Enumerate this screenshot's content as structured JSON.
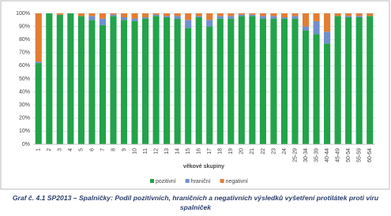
{
  "chart_data": {
    "type": "stacked_bar",
    "categories": [
      "1",
      "2",
      "3",
      "4",
      "5",
      "6",
      "7",
      "8",
      "9",
      "10",
      "11",
      "12",
      "13",
      "14",
      "15",
      "16",
      "17",
      "18",
      "19",
      "20",
      "21",
      "22",
      "23",
      "24",
      "25-29",
      "30-34",
      "35-39",
      "40-44",
      "45-49",
      "50-54",
      "55-59",
      "60-64"
    ],
    "series": [
      {
        "name": "pozitivní",
        "color": "#22a34a",
        "values": [
          62,
          100,
          99,
          100,
          98,
          95,
          91,
          98,
          95,
          94,
          96,
          98,
          97,
          96,
          89,
          97,
          90,
          96,
          96,
          98,
          98,
          96,
          96,
          96,
          96,
          87,
          84,
          77,
          98,
          97,
          97,
          98
        ]
      },
      {
        "name": "hraniční",
        "color": "#6f8fcf",
        "values": [
          1,
          0,
          0,
          0,
          0,
          3,
          5,
          1,
          2,
          2,
          1,
          1,
          1,
          2,
          6,
          1,
          5,
          2,
          2,
          1,
          1,
          2,
          2,
          1,
          2,
          3,
          10,
          9,
          0,
          1,
          1,
          0
        ]
      },
      {
        "name": "negativní",
        "color": "#e47d32",
        "values": [
          37,
          0,
          1,
          0,
          2,
          2,
          4,
          1,
          3,
          4,
          3,
          1,
          2,
          2,
          5,
          2,
          5,
          2,
          2,
          1,
          1,
          2,
          2,
          3,
          2,
          10,
          6,
          14,
          2,
          2,
          2,
          2
        ]
      }
    ],
    "ylim": [
      0,
      100
    ],
    "yticks": [
      {
        "value": 0,
        "label": "0%"
      },
      {
        "value": 10,
        "label": "10%"
      },
      {
        "value": 20,
        "label": "20%"
      },
      {
        "value": 30,
        "label": "30%"
      },
      {
        "value": 40,
        "label": "40%"
      },
      {
        "value": 50,
        "label": "50%"
      },
      {
        "value": 60,
        "label": "60%"
      },
      {
        "value": 70,
        "label": "70%"
      },
      {
        "value": 80,
        "label": "80%"
      },
      {
        "value": 90,
        "label": "90%"
      },
      {
        "value": 100,
        "label": "100%"
      }
    ],
    "xlabel": "věkové skupiny",
    "grid": true,
    "legend": "bottom",
    "caption": "Graf č. 4.1 SP2013 – Spalničky: Podíl pozitivních, hraničních a negativních výsledků vyšetření protilátek proti viru spalniček"
  }
}
